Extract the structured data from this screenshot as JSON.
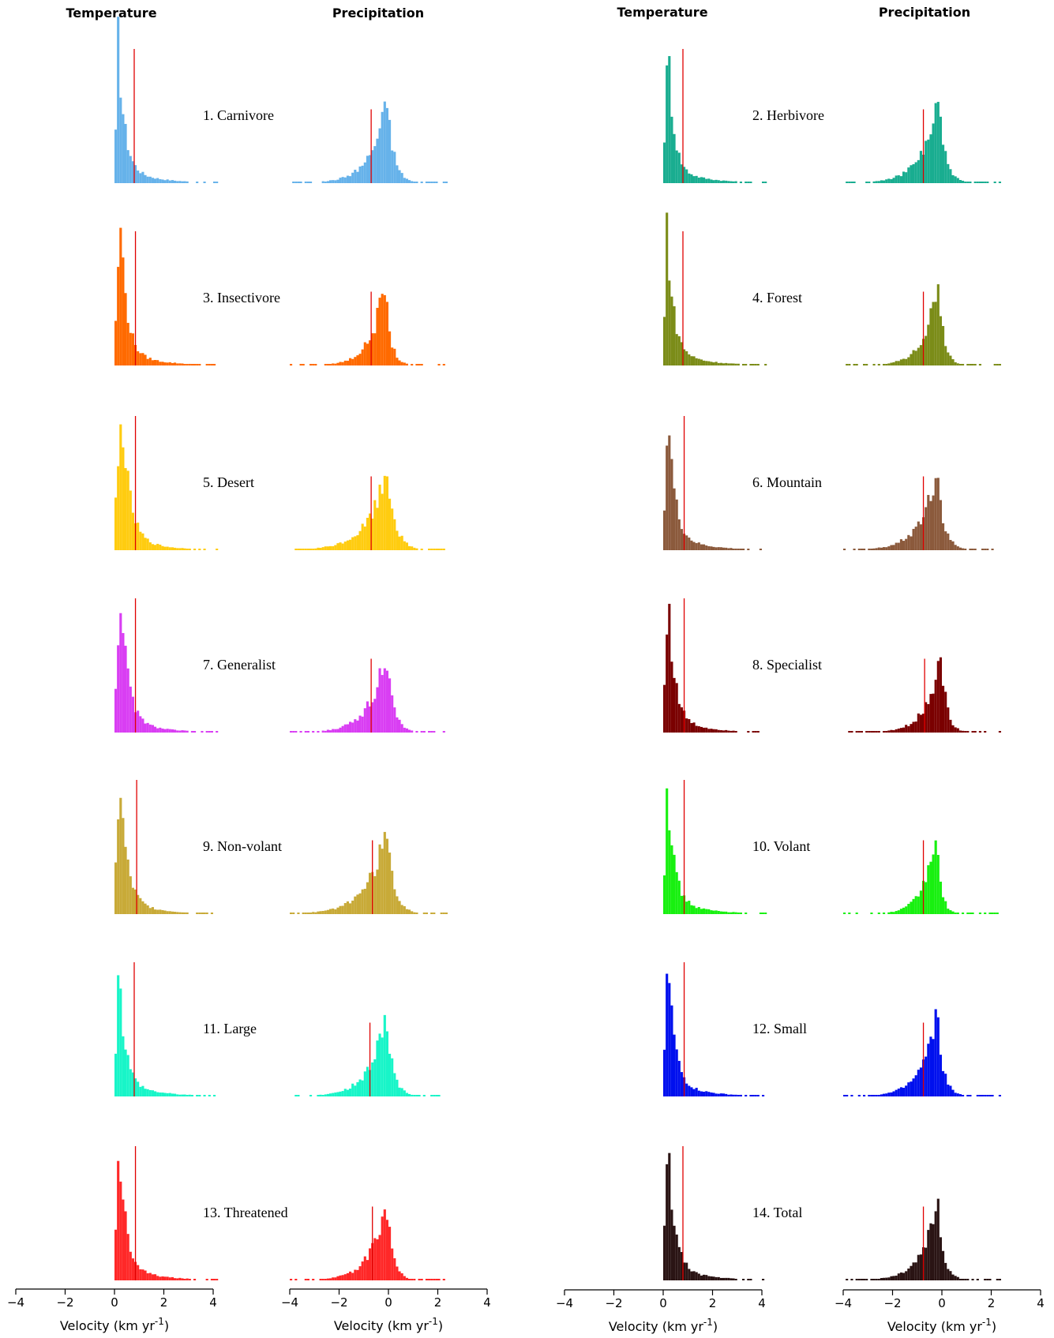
{
  "headers": {
    "temperature": "Temperature",
    "precipitation": "Precipitation"
  },
  "axis": {
    "xlabel_main": "Velocity (km yr",
    "xlabel_sup": "-1",
    "xlabel_close": ")",
    "ticks": [
      "-4",
      "-2",
      "0",
      "2",
      "4"
    ]
  },
  "chart_data": {
    "type": "bar",
    "description_scale": "histograms of climate velocity; x in km yr-1, y relative frequency (0-1)",
    "xlim": [
      -4,
      4
    ],
    "bin_width": 0.1,
    "mean_line_color": "#e00000",
    "panels": [
      {
        "label": "1. Carnivore",
        "color": "#66b2ea",
        "temp_mean": 0.8,
        "precip_mean": -0.7,
        "temp_peak": 0.1,
        "precip_peak": -0.1,
        "temp_spread": 0.25,
        "precip_spread": 0.3
      },
      {
        "label": "2. Herbivore",
        "color": "#19ad90",
        "temp_mean": 0.8,
        "precip_mean": -0.75,
        "temp_peak": 0.15,
        "precip_peak": -0.2,
        "temp_spread": 0.22,
        "precip_spread": 0.3
      },
      {
        "label": "3. Insectivore",
        "color": "#ff6a00",
        "temp_mean": 0.85,
        "precip_mean": -0.7,
        "temp_peak": 0.2,
        "precip_peak": -0.2,
        "temp_spread": 0.25,
        "precip_spread": 0.25
      },
      {
        "label": "4. Forest",
        "color": "#7b8c18",
        "temp_mean": 0.8,
        "precip_mean": -0.75,
        "temp_peak": 0.1,
        "precip_peak": -0.2,
        "temp_spread": 0.25,
        "precip_spread": 0.25
      },
      {
        "label": "5. Desert",
        "color": "#ffcc10",
        "temp_mean": 0.85,
        "precip_mean": -0.7,
        "temp_peak": 0.25,
        "precip_peak": -0.1,
        "temp_spread": 0.3,
        "precip_spread": 0.35
      },
      {
        "label": "6. Mountain",
        "color": "#8b5a3c",
        "temp_mean": 0.85,
        "precip_mean": -0.75,
        "temp_peak": 0.15,
        "precip_peak": -0.25,
        "temp_spread": 0.25,
        "precip_spread": 0.3
      },
      {
        "label": "7. Generalist",
        "color": "#d93ef3",
        "temp_mean": 0.85,
        "precip_mean": -0.7,
        "temp_peak": 0.2,
        "precip_peak": -0.15,
        "temp_spread": 0.28,
        "precip_spread": 0.3
      },
      {
        "label": "8. Specialist",
        "color": "#7a0000",
        "temp_mean": 0.85,
        "precip_mean": -0.7,
        "temp_peak": 0.15,
        "precip_peak": -0.1,
        "temp_spread": 0.25,
        "precip_spread": 0.25
      },
      {
        "label": "9. Non-volant",
        "color": "#c8aa38",
        "temp_mean": 0.9,
        "precip_mean": -0.65,
        "temp_peak": 0.15,
        "precip_peak": -0.15,
        "temp_spread": 0.28,
        "precip_spread": 0.35
      },
      {
        "label": "10. Volant",
        "color": "#18f010",
        "temp_mean": 0.85,
        "precip_mean": -0.75,
        "temp_peak": 0.1,
        "precip_peak": -0.3,
        "temp_spread": 0.25,
        "precip_spread": 0.22
      },
      {
        "label": "11. Large",
        "color": "#18f5c8",
        "temp_mean": 0.8,
        "precip_mean": -0.75,
        "temp_peak": 0.1,
        "precip_peak": -0.15,
        "temp_spread": 0.25,
        "precip_spread": 0.3
      },
      {
        "label": "12. Small",
        "color": "#0010ee",
        "temp_mean": 0.85,
        "precip_mean": -0.75,
        "temp_peak": 0.15,
        "precip_peak": -0.25,
        "temp_spread": 0.25,
        "precip_spread": 0.28
      },
      {
        "label": "13. Threatened",
        "color": "#ff2828",
        "temp_mean": 0.85,
        "precip_mean": -0.65,
        "temp_peak": 0.15,
        "precip_peak": -0.15,
        "temp_spread": 0.25,
        "precip_spread": 0.28
      },
      {
        "label": "14. Total",
        "color": "#2a1414",
        "temp_mean": 0.8,
        "precip_mean": -0.75,
        "temp_peak": 0.15,
        "precip_peak": -0.25,
        "temp_spread": 0.25,
        "precip_spread": 0.28
      }
    ]
  }
}
